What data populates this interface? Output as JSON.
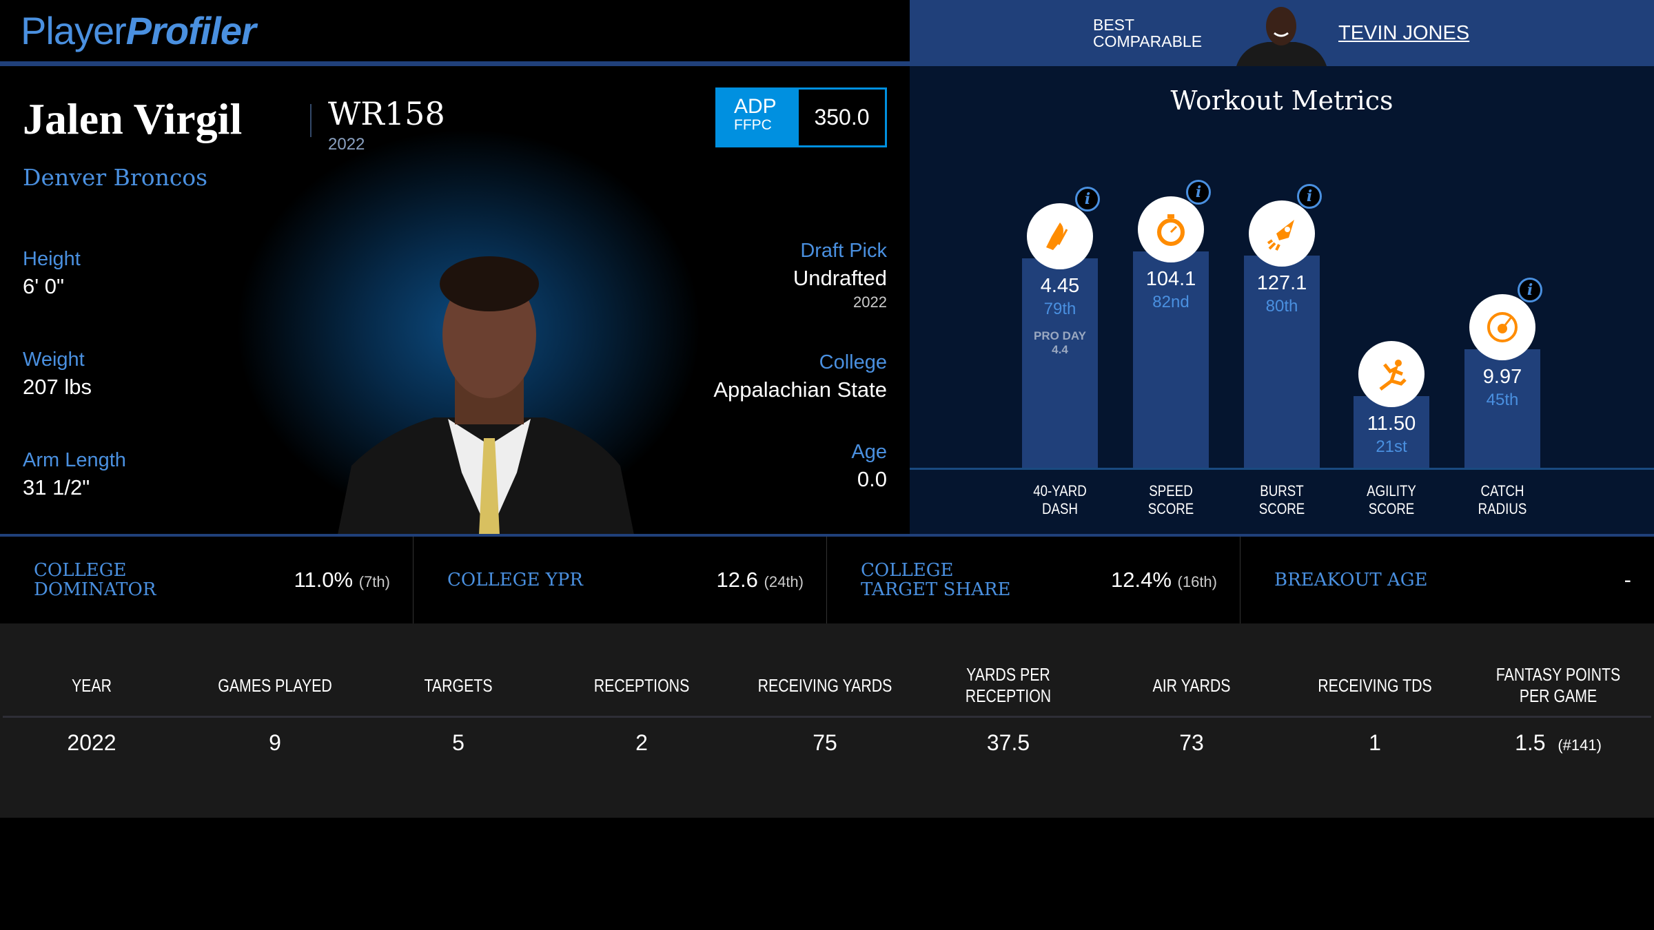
{
  "logo": {
    "part1": "Player",
    "part2": "Profiler"
  },
  "player": {
    "name": "Jalen Virgil",
    "position_rank": "WR158",
    "year": "2022",
    "team": "Denver Broncos"
  },
  "adp": {
    "label": "ADP",
    "source": "FFPC",
    "value": "350.0"
  },
  "bio_left": [
    {
      "label": "Height",
      "value": "6' 0\""
    },
    {
      "label": "Weight",
      "value": "207 lbs"
    },
    {
      "label": "Arm Length",
      "value": "31 1/2\""
    }
  ],
  "bio_right": {
    "draft_label": "Draft Pick",
    "draft_value": "Undrafted",
    "draft_year": "2022",
    "college_label": "College",
    "college_value": "Appalachian State",
    "age_label": "Age",
    "age_value": "0.0"
  },
  "comparable": {
    "label1": "BEST",
    "label2": "COMPARABLE",
    "name": "TEVIN JONES"
  },
  "workout": {
    "title": "Workout Metrics",
    "metrics": [
      {
        "name1": "40-YARD",
        "name2": "DASH",
        "value": "4.45",
        "pct": "79th",
        "extra1": "PRO DAY",
        "extra2": "4.4",
        "icon": "shoe-icon"
      },
      {
        "name1": "SPEED",
        "name2": "SCORE",
        "value": "104.1",
        "pct": "82nd",
        "icon": "stopwatch-icon"
      },
      {
        "name1": "BURST",
        "name2": "SCORE",
        "value": "127.1",
        "pct": "80th",
        "icon": "rocket-icon"
      },
      {
        "name1": "AGILITY",
        "name2": "SCORE",
        "value": "11.50",
        "pct": "21st",
        "icon": "runner-icon"
      },
      {
        "name1": "CATCH",
        "name2": "RADIUS",
        "value": "9.97",
        "pct": "45th",
        "icon": "target-icon"
      }
    ],
    "info_glyph": "i"
  },
  "college_stats": [
    {
      "label": "COLLEGE DOMINATOR",
      "value": "11.0%",
      "rank": "(7th)"
    },
    {
      "label": "COLLEGE YPR",
      "value": "12.6",
      "rank": "(24th)"
    },
    {
      "label": "COLLEGE TARGET SHARE",
      "value": "12.4%",
      "rank": "(16th)"
    },
    {
      "label": "BREAKOUT AGE",
      "value": "-",
      "rank": ""
    }
  ],
  "table": {
    "headers": [
      "YEAR",
      "GAMES PLAYED",
      "TARGETS",
      "RECEPTIONS",
      "RECEIVING YARDS",
      "YARDS PER RECEPTION",
      "AIR YARDS",
      "RECEIVING TDS",
      "FANTASY POINTS PER GAME"
    ],
    "rows": [
      {
        "cells": [
          "2022",
          "9",
          "5",
          "2",
          "75",
          "37.5",
          "73",
          "1",
          "1.5"
        ],
        "fp_rank": "(#141)"
      }
    ]
  },
  "colors": {
    "accent": "#4a90e0",
    "header_blue": "#20407a",
    "panel": "#05152f",
    "adp": "#0090e0",
    "icon": "#ff8c00"
  }
}
